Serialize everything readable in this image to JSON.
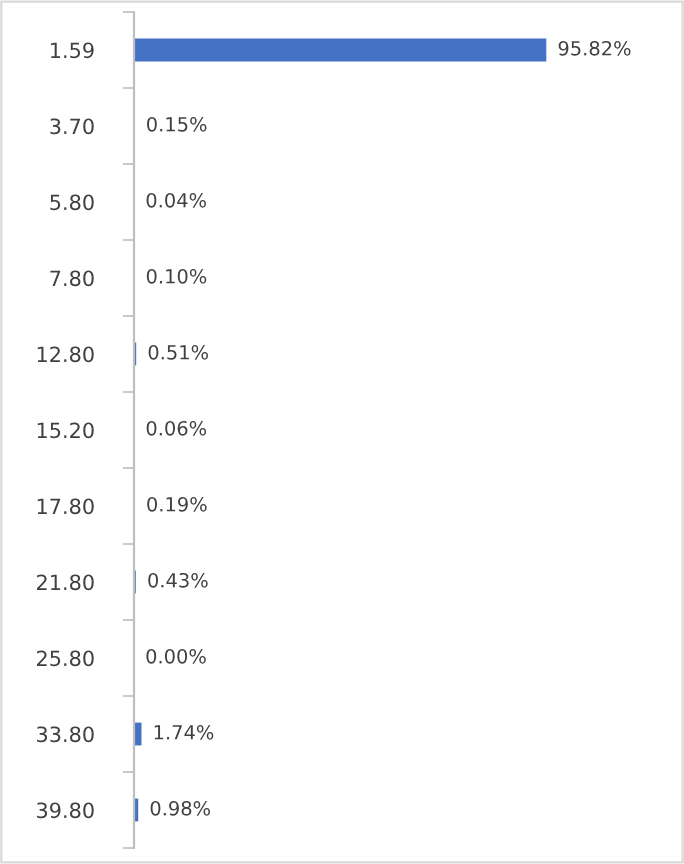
{
  "chart_data": {
    "type": "bar",
    "orientation": "horizontal",
    "categories": [
      "1.59",
      "3.70",
      "5.80",
      "7.80",
      "12.80",
      "15.20",
      "17.80",
      "21.80",
      "25.80",
      "33.80",
      "39.80"
    ],
    "values": [
      95.82,
      0.15,
      0.04,
      0.1,
      0.51,
      0.06,
      0.19,
      0.43,
      0.0,
      1.74,
      0.98
    ],
    "value_labels": [
      "95.82%",
      "0.15%",
      "0.04%",
      "0.10%",
      "0.51%",
      "0.06%",
      "0.19%",
      "0.43%",
      "0.00%",
      "1.74%",
      "0.98%"
    ],
    "color": "#4472c4",
    "grid": false,
    "legend": false
  }
}
